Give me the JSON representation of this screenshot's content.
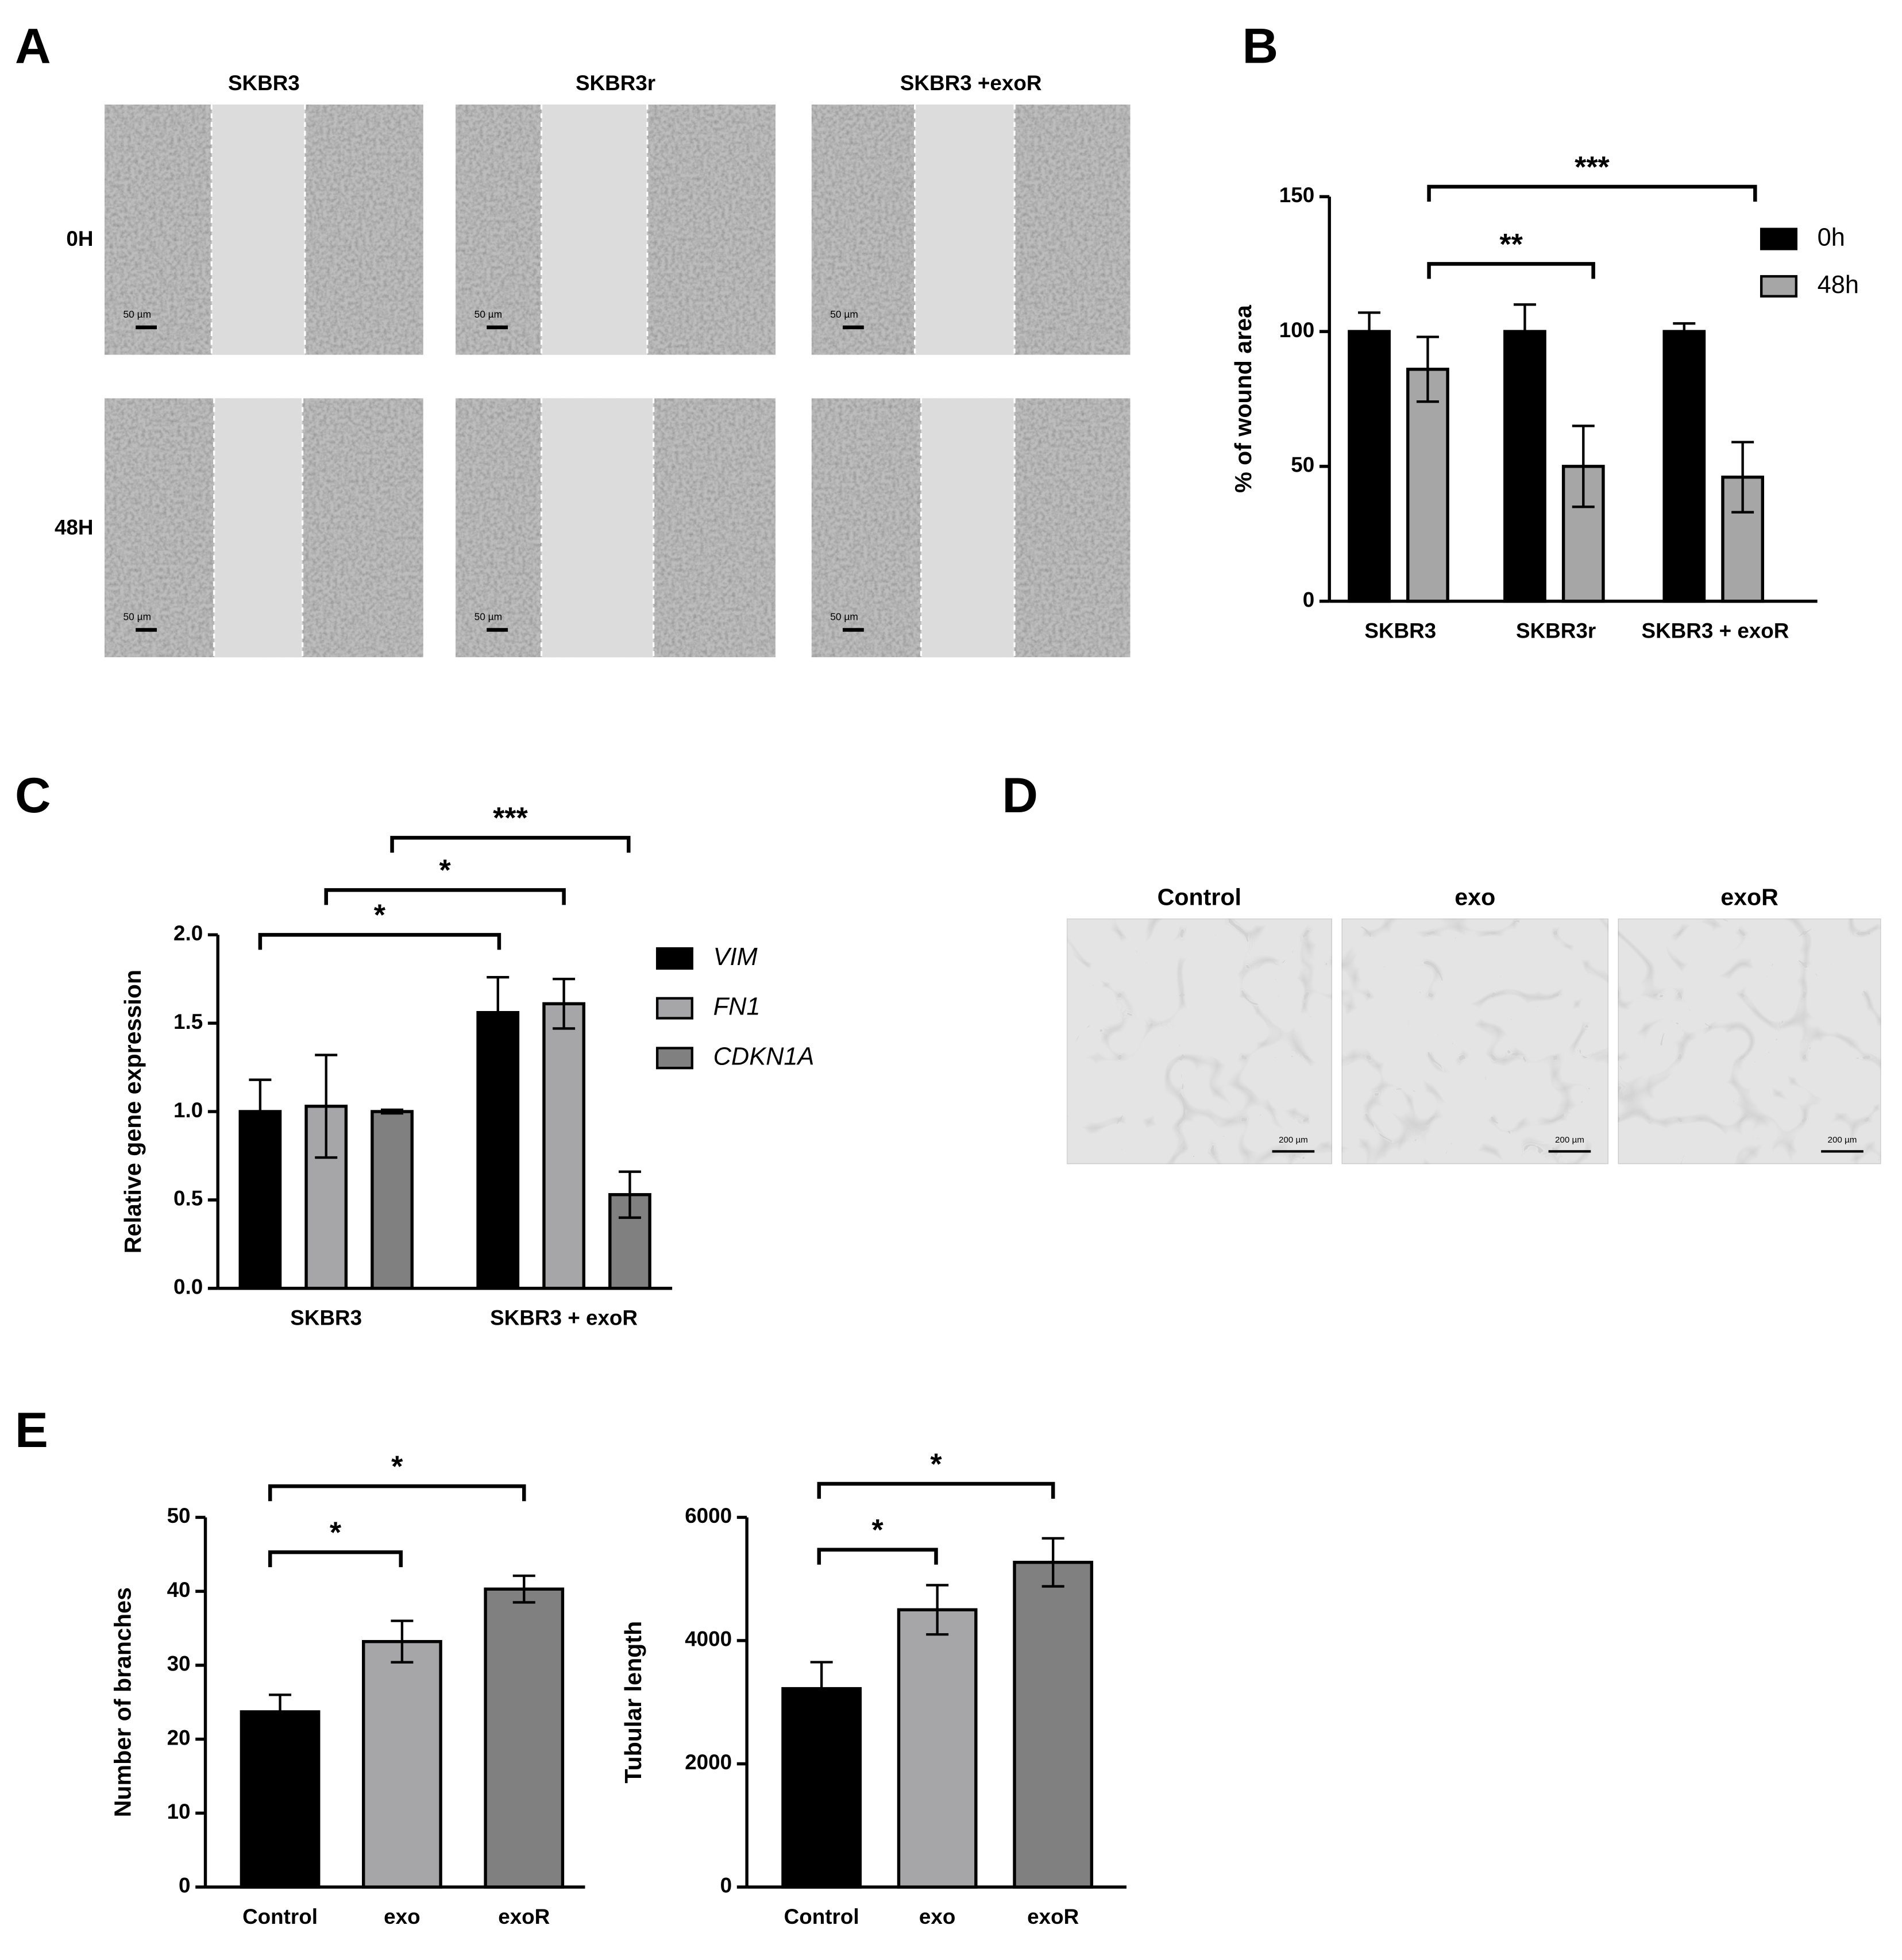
{
  "panel_a": {
    "label": "A",
    "columns": [
      "SKBR3",
      "SKBR3r",
      "SKBR3 +exoR"
    ],
    "rows": [
      "0H",
      "48H"
    ],
    "scale_bar": "50 µm"
  },
  "panel_d": {
    "label": "D",
    "columns": [
      "Control",
      "exo",
      "exoR"
    ],
    "scale_bar": "200 µm"
  },
  "chart_data": [
    {
      "type": "bar",
      "panel_label": "B",
      "y_label": "% of wound area",
      "categories": [
        "SKBR3",
        "SKBR3r",
        "SKBR3 + exoR"
      ],
      "series": [
        {
          "name": "0h",
          "color": "#000000",
          "values": [
            100,
            100,
            100
          ],
          "errors": [
            7,
            10,
            3
          ]
        },
        {
          "name": "48h",
          "color": "#a6a6a6",
          "values": [
            86,
            50,
            46
          ],
          "errors": [
            12,
            15,
            13
          ]
        }
      ],
      "ylim": [
        0,
        150
      ],
      "yticks": [
        0,
        50,
        100,
        150
      ],
      "annotations": [
        "**",
        "***"
      ]
    },
    {
      "type": "bar",
      "panel_label": "C",
      "y_label": "Relative gene expression",
      "categories": [
        "SKBR3",
        "SKBR3 + exoR"
      ],
      "series": [
        {
          "name": "VIM",
          "color": "#000000",
          "values": [
            1.0,
            1.56
          ],
          "errors": [
            0.18,
            0.2
          ]
        },
        {
          "name": "FN1",
          "color": "#a6a6a8",
          "values": [
            1.03,
            1.61
          ],
          "errors": [
            0.29,
            0.14
          ]
        },
        {
          "name": "CDKN1A",
          "color": "#808080",
          "values": [
            1.0,
            0.53
          ],
          "errors": [
            0.01,
            0.13
          ]
        }
      ],
      "ylim": [
        0,
        2
      ],
      "yticks": [
        {
          "value": 0,
          "label": "0.0"
        },
        {
          "value": 0.5,
          "label": "0.5"
        },
        {
          "value": 1,
          "label": "1.0"
        },
        {
          "value": 1.5,
          "label": "1.5"
        },
        {
          "value": 2,
          "label": "2.0"
        }
      ],
      "annotations": [
        "*",
        "*",
        "***"
      ]
    },
    {
      "type": "bar",
      "panel_label": "E",
      "y_label": "Number of branches",
      "categories": [
        "Control",
        "exo",
        "exoR"
      ],
      "values": [
        23.7,
        33.2,
        40.3
      ],
      "errors": [
        2.3,
        2.8,
        1.8
      ],
      "colors": [
        "#000000",
        "#a6a6a8",
        "#808080"
      ],
      "ylim": [
        0,
        50
      ],
      "yticks": [
        0,
        10,
        20,
        30,
        40,
        50
      ],
      "annotations": [
        "*",
        "*"
      ]
    },
    {
      "type": "bar",
      "y_label": "Tubular length",
      "categories": [
        "Control",
        "exo",
        "exoR"
      ],
      "values": [
        3220,
        4500,
        5270
      ],
      "errors": [
        430,
        400,
        390
      ],
      "colors": [
        "#000000",
        "#a6a6a8",
        "#808080"
      ],
      "ylim": [
        0,
        6000
      ],
      "yticks": [
        0,
        2000,
        4000,
        6000
      ],
      "annotations": [
        "*",
        "*"
      ]
    }
  ]
}
